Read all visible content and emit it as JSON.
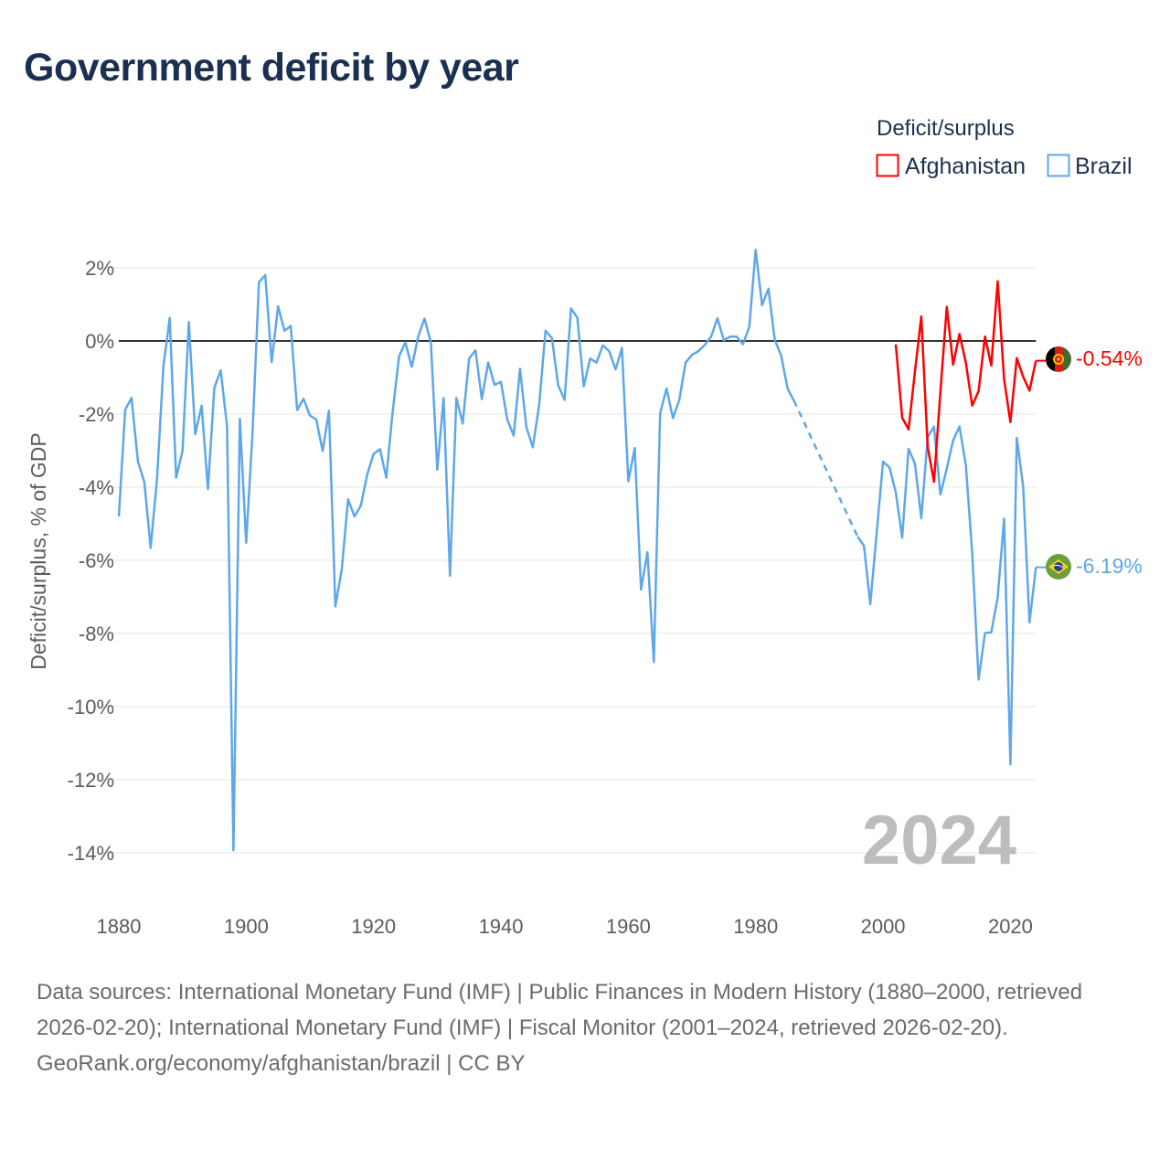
{
  "title": "Government deficit by year",
  "chart_data": {
    "type": "line",
    "title": "Government deficit by year",
    "xlabel": "",
    "ylabel": "Deficit/surplus, % of GDP",
    "xlim": [
      1880,
      2024
    ],
    "ylim": [
      -14,
      2
    ],
    "x_ticks": [
      1880,
      1900,
      1920,
      1940,
      1960,
      1980,
      2000,
      2020
    ],
    "x_tick_labels": [
      "1880",
      "1900",
      "1920",
      "1940",
      "1960",
      "1980",
      "2000",
      "2020"
    ],
    "y_ticks": [
      2,
      0,
      -2,
      -4,
      -6,
      -8,
      -10,
      -12,
      -14
    ],
    "y_tick_labels": [
      "2%",
      "0%",
      "-2%",
      "-4%",
      "-6%",
      "-8%",
      "-10%",
      "-12%",
      "-14%"
    ],
    "grid": true,
    "legend_title": "Deficit/surplus",
    "legend_position": "top-right",
    "year_watermark": "2024",
    "series": [
      {
        "name": "Afghanistan",
        "color": "#ff0000",
        "start_year": 2002,
        "end_label": "-0.54%",
        "values": [
          -0.09,
          -2.1,
          -2.42,
          -0.85,
          0.67,
          -2.9,
          -3.85,
          -1.4,
          0.93,
          -0.65,
          0.19,
          -0.6,
          -1.77,
          -1.37,
          0.12,
          -0.67,
          1.63,
          -1.05,
          -2.22,
          -0.47,
          -0.98,
          -1.36,
          -0.54
        ]
      },
      {
        "name": "Brazil",
        "color": "#5ea7e8",
        "start_year": 1880,
        "end_label": "-6.19%",
        "values": [
          -4.8,
          -1.88,
          -1.56,
          -3.3,
          -3.86,
          -5.66,
          -3.77,
          -0.69,
          0.63,
          -3.74,
          -3.01,
          0.52,
          -2.55,
          -1.77,
          -4.05,
          -1.28,
          -0.8,
          -2.34,
          -13.93,
          -2.13,
          -5.52,
          -2.5,
          1.61,
          1.8,
          -0.58,
          0.95,
          0.28,
          0.41,
          -1.89,
          -1.58,
          -2.04,
          -2.15,
          -3.01,
          -1.91,
          -7.26,
          -6.25,
          -4.33,
          -4.8,
          -4.5,
          -3.66,
          -3.09,
          -2.96,
          -3.74,
          -1.93,
          -0.42,
          -0.04,
          -0.71,
          0.12,
          0.61,
          -0.04,
          -3.52,
          -1.56,
          -6.42,
          -1.56,
          -2.26,
          -0.48,
          -0.26,
          -1.59,
          -0.59,
          -1.2,
          -1.12,
          -2.15,
          -2.59,
          -0.76,
          -2.36,
          -2.91,
          -1.76,
          0.28,
          0.08,
          -1.22,
          -1.61,
          0.89,
          0.64,
          -1.24,
          -0.48,
          -0.59,
          -0.12,
          -0.28,
          -0.78,
          -0.19,
          -3.84,
          -2.93,
          -6.8,
          -5.78,
          -8.78,
          -1.98,
          -1.3,
          -2.11,
          -1.62,
          -0.59,
          -0.38,
          -0.28,
          -0.11,
          0.12,
          0.62,
          0.02,
          0.12,
          0.12,
          -0.09,
          0.39,
          2.49,
          0.98,
          1.43,
          0.03,
          -0.4,
          -1.3,
          -1.63,
          null,
          null,
          null,
          null,
          null,
          null,
          null,
          null,
          null,
          -5.35,
          -5.6,
          -7.2,
          -5.25,
          -3.3,
          -3.46,
          -4.14,
          -5.38,
          -2.95,
          -3.35,
          -4.85,
          -2.63,
          -2.34,
          -4.2,
          -3.49,
          -2.72,
          -2.34,
          -3.41,
          -5.8,
          -9.26,
          -7.99,
          -7.97,
          -7.01,
          -4.86,
          -11.58,
          -2.65,
          -3.99,
          -7.7,
          -6.19
        ]
      }
    ]
  },
  "footer": {
    "sources": "Data sources: International Monetary Fund (IMF) | Public Finances in Modern History (1880–2000, retrieved 2026-02-20); International Monetary Fund (IMF) | Fiscal Monitor (2001–2024, retrieved 2026-02-20).",
    "credit": "GeoRank.org/economy/afghanistan/brazil | CC BY"
  }
}
